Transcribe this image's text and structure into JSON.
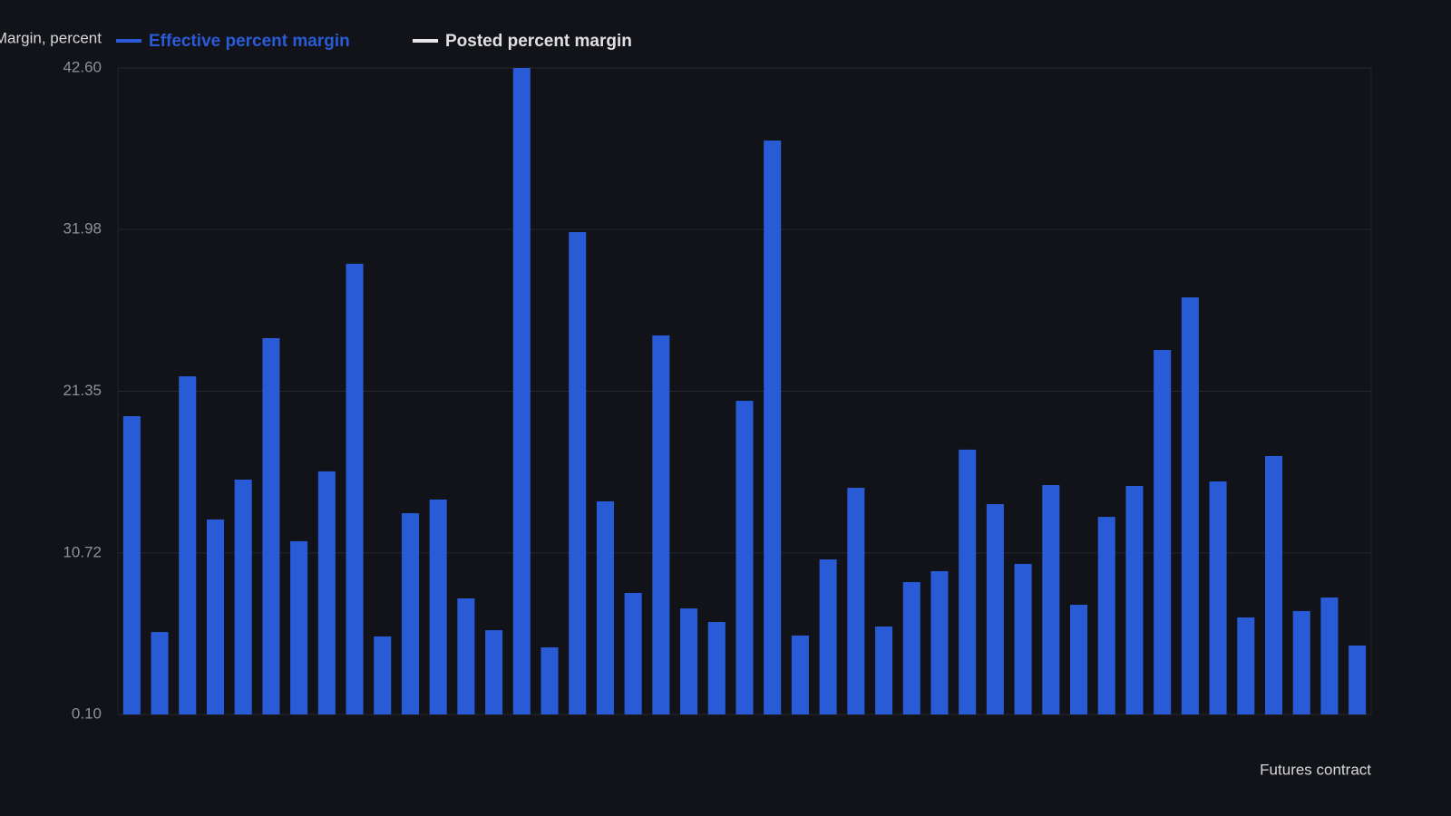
{
  "chart_data": {
    "type": "bar",
    "y_axis_label": "Margin, percent",
    "x_axis_label": "Futures contract",
    "categories": [
      null,
      null,
      null,
      null,
      null,
      null,
      null,
      null,
      null,
      null,
      null,
      null,
      null,
      null,
      null,
      null,
      null,
      null,
      null,
      null,
      null,
      null,
      null,
      null,
      null,
      null,
      null,
      null,
      null,
      null,
      null,
      null,
      null,
      null,
      null,
      null,
      null,
      null,
      null,
      null,
      null,
      null,
      null,
      null,
      null
    ],
    "series": [
      {
        "name": "Effective percent margin",
        "color": "#2a5bd7",
        "values": [
          19.71,
          5.52,
          22.33,
          12.92,
          15.54,
          24.84,
          11.49,
          16.08,
          29.73,
          5.23,
          13.33,
          14.23,
          7.73,
          5.64,
          42.6,
          4.51,
          31.81,
          14.11,
          8.09,
          25.02,
          7.07,
          6.18,
          20.72,
          37.83,
          5.29,
          10.29,
          15.0,
          5.88,
          8.8,
          9.52,
          17.51,
          13.93,
          10.0,
          15.18,
          7.31,
          13.09,
          15.12,
          24.06,
          27.52,
          15.42,
          6.48,
          17.09,
          6.9,
          7.79,
          4.63
        ]
      },
      {
        "name": "Posted percent margin",
        "color": "#e8e8e8",
        "values": [
          null,
          null,
          null,
          null,
          null,
          null,
          null,
          null,
          null,
          null,
          null,
          null,
          null,
          null,
          null,
          null,
          null,
          null,
          null,
          null,
          null,
          null,
          null,
          null,
          null,
          null,
          null,
          null,
          null,
          null,
          null,
          null,
          null,
          null,
          null,
          null,
          null,
          null,
          null,
          null,
          null,
          null,
          null,
          null,
          null
        ]
      }
    ],
    "ylim": [
      0.1,
      42.6
    ],
    "yticks": [
      {
        "value": 0.1,
        "label": "0.10"
      },
      10.72,
      21.35,
      31.98,
      {
        "value": 42.6,
        "label": "42.60"
      }
    ],
    "grid": true
  }
}
